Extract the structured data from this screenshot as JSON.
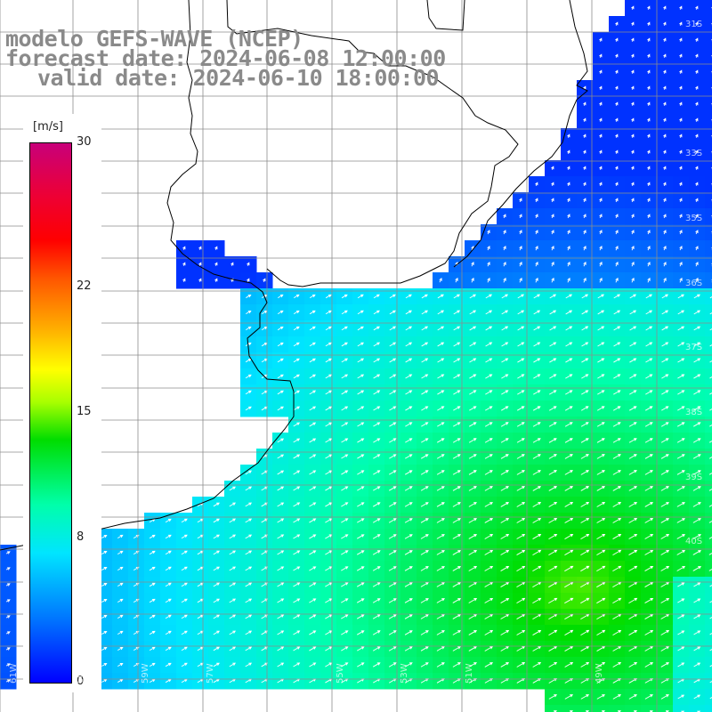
{
  "title": {
    "line1": "modelo GEFS-WAVE (NCEP)",
    "line2": "forecast date: 2024-06-08 12:00:00",
    "line3": "valid date: 2024-06-10 18:00:00"
  },
  "colorbar": {
    "unit": "[m/s]",
    "ticks": [
      {
        "label": "30",
        "value": 30
      },
      {
        "label": "22",
        "value": 22
      },
      {
        "label": "15",
        "value": 15
      },
      {
        "label": "8",
        "value": 8
      },
      {
        "label": "0",
        "value": 0
      }
    ],
    "min": 0,
    "max": 30
  },
  "map": {
    "variable": "wind speed",
    "land_color": "#ffffff",
    "grid_color": "#8c8c8c",
    "coast_color": "#000000",
    "arrow_color": "#ffffff",
    "lat_labels": [
      "31S",
      "33S",
      "35S",
      "36S",
      "37S",
      "38S",
      "39S",
      "40S"
    ],
    "lon_labels": [
      "61W",
      "60W",
      "59W",
      "57W",
      "55W",
      "53W",
      "51W",
      "49W"
    ]
  }
}
